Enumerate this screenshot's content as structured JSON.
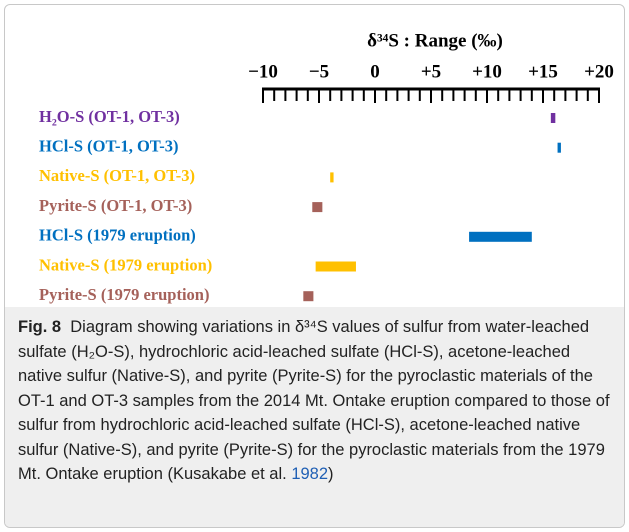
{
  "chart_data": {
    "type": "range",
    "title": "δ³⁴S : Range (‰)",
    "categories": [
      "H₂O-S (OT-1, OT-3)",
      "HCl-S (OT-1, OT-3)",
      "Native-S (OT-1, OT-3)",
      "Pyrite-S (OT-1, OT-3)",
      "HCl-S (1979 eruption)",
      "Native-S (1979 eruption)",
      "Pyrite-S (1979 eruption)"
    ],
    "ranges": [
      [
        15.7,
        16.1
      ],
      [
        16.3,
        16.6
      ],
      [
        -4.0,
        -3.7
      ],
      [
        -5.6,
        -4.7
      ],
      [
        8.4,
        14.0
      ],
      [
        -5.3,
        -1.7
      ],
      [
        -6.4,
        -5.5
      ]
    ],
    "colors": [
      "#7030a0",
      "#0070c0",
      "#ffc000",
      "#a5615a",
      "#0070c0",
      "#ffc000",
      "#a5615a"
    ],
    "xlim": [
      -10,
      20
    ],
    "xticks": [
      {
        "value": -10,
        "label": "−10"
      },
      {
        "value": -5,
        "label": "−5"
      },
      0,
      {
        "value": 5,
        "label": "+5"
      },
      {
        "value": 10,
        "label": "+10"
      },
      {
        "value": 15,
        "label": "+15"
      },
      {
        "value": 20,
        "label": "+20"
      }
    ],
    "minor_tick_step": 1
  },
  "caption": {
    "label": "Fig. 8",
    "text": "Diagram showing variations in δ³⁴S values of sulfur from water-leached sulfate (H₂O-S), hydrochloric acid-leached sulfate (HCl-S), acetone-leached native sulfur (Native-S), and pyrite (Pyrite-S) for the pyroclastic materials of the OT-1 and OT-3 samples from the 2014 Mt. Ontake eruption compared to those of sulfur from hydrochloric acid-leached sulfate (HCl-S), acetone-leached native sulfur (Native-S), and pyrite (Pyrite-S) for the pyroclastic materials from the 1979 Mt. Ontake eruption (Kusakabe et al. ",
    "link": "1982",
    "end": ")"
  }
}
